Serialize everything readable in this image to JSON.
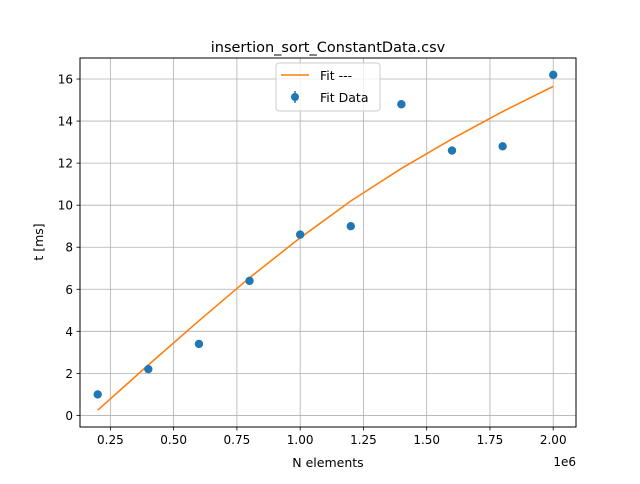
{
  "chart_data": {
    "type": "scatter",
    "title": "insertion_sort_ConstantData.csv",
    "xlabel": "N elements",
    "ylabel": "t [ms]",
    "x_offset_label": "1e6",
    "xlim": [
      0.13,
      2.09
    ],
    "ylim": [
      -0.55,
      17.0
    ],
    "grid": true,
    "legend_position": "top-center",
    "x_ticks": [
      {
        "value": 0.25,
        "label": "0.25"
      },
      {
        "value": 0.5,
        "label": "0.50"
      },
      {
        "value": 0.75,
        "label": "0.75"
      },
      {
        "value": 1.0,
        "label": "1.00"
      },
      {
        "value": 1.25,
        "label": "1.25"
      },
      {
        "value": 1.5,
        "label": "1.50"
      },
      {
        "value": 1.75,
        "label": "1.75"
      },
      {
        "value": 2.0,
        "label": "2.00"
      }
    ],
    "y_ticks": [
      {
        "value": 0,
        "label": "0"
      },
      {
        "value": 2,
        "label": "2"
      },
      {
        "value": 4,
        "label": "4"
      },
      {
        "value": 6,
        "label": "6"
      },
      {
        "value": 8,
        "label": "8"
      },
      {
        "value": 10,
        "label": "10"
      },
      {
        "value": 12,
        "label": "12"
      },
      {
        "value": 14,
        "label": "14"
      },
      {
        "value": 16,
        "label": "16"
      }
    ],
    "series": [
      {
        "name": "Fit ---",
        "kind": "line",
        "color": "#ff7f0e",
        "x": [
          0.2,
          0.4,
          0.6,
          0.8,
          1.0,
          1.2,
          1.4,
          1.6,
          1.8,
          2.0
        ],
        "y": [
          0.25,
          2.4,
          4.5,
          6.55,
          8.45,
          10.2,
          11.75,
          13.15,
          14.45,
          15.65
        ]
      },
      {
        "name": "Fit Data",
        "kind": "scatter",
        "color": "#1f77b4",
        "x": [
          0.2,
          0.4,
          0.6,
          0.8,
          1.0,
          1.2,
          1.4,
          1.6,
          1.8,
          2.0
        ],
        "y": [
          1.0,
          2.2,
          3.4,
          6.4,
          8.6,
          9.0,
          14.8,
          12.6,
          12.8,
          16.2
        ]
      }
    ]
  }
}
